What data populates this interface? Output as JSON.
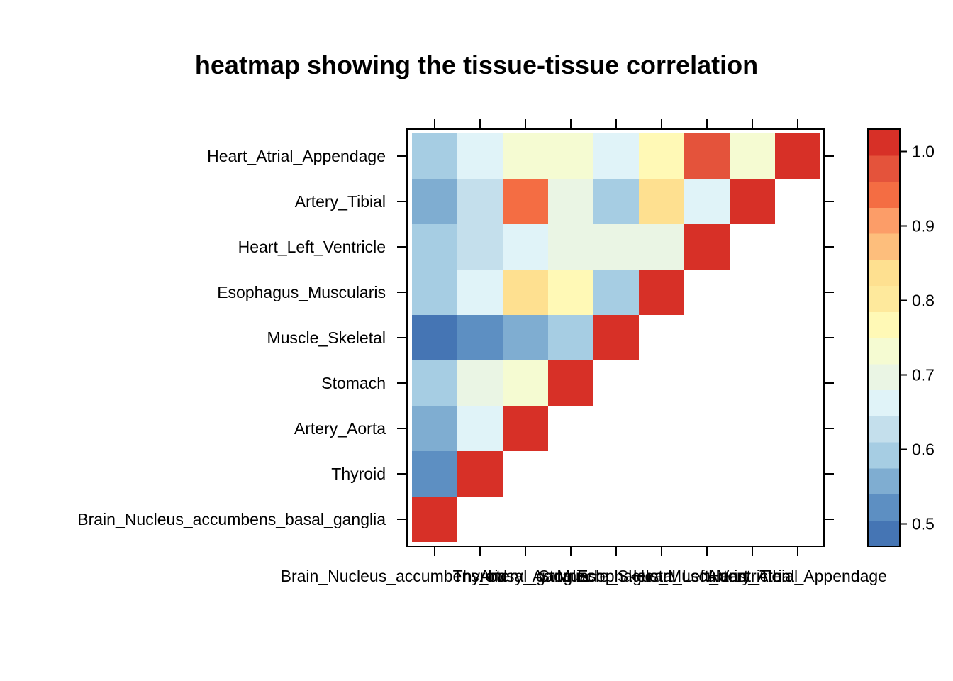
{
  "chart_data": {
    "type": "heatmap",
    "title": "heatmap showing the tissue-tissue correlation",
    "xlabel": "",
    "ylabel": "",
    "tissues": [
      "Brain_Nucleus_accumbens_basal_ganglia",
      "Thyroid",
      "Artery_Aorta",
      "Stomach",
      "Muscle_Skeletal",
      "Esophagus_Muscularis",
      "Heart_Left_Ventricle",
      "Artery_Tibial",
      "Heart_Atrial_Appendage"
    ],
    "matrix": [
      [
        1.0,
        null,
        null,
        null,
        null,
        null,
        null,
        null,
        null
      ],
      [
        0.53,
        1.0,
        null,
        null,
        null,
        null,
        null,
        null,
        null
      ],
      [
        0.56,
        0.66,
        1.0,
        null,
        null,
        null,
        null,
        null,
        null
      ],
      [
        0.59,
        0.69,
        0.74,
        1.0,
        null,
        null,
        null,
        null,
        null
      ],
      [
        0.49,
        0.53,
        0.56,
        0.59,
        1.0,
        null,
        null,
        null,
        null
      ],
      [
        0.59,
        0.66,
        0.84,
        0.78,
        0.59,
        1.0,
        null,
        null,
        null
      ],
      [
        0.59,
        0.62,
        0.66,
        0.69,
        0.69,
        0.69,
        1.0,
        null,
        null
      ],
      [
        0.56,
        0.62,
        0.94,
        0.69,
        0.59,
        0.84,
        0.66,
        1.0,
        null
      ],
      [
        0.59,
        0.66,
        0.74,
        0.74,
        0.66,
        0.78,
        0.97,
        0.74,
        1.0
      ]
    ],
    "colorbar": {
      "range": [
        0.47,
        1.03
      ],
      "ticks": [
        "0.5",
        "0.6",
        "0.7",
        "0.8",
        "0.9",
        "1.0"
      ],
      "tick_values": [
        0.5,
        0.6,
        0.7,
        0.8,
        0.9,
        1.0
      ],
      "colors": [
        "#4575B4",
        "#5D8FC2",
        "#7FADD1",
        "#A6CDE3",
        "#C4DFEC",
        "#E0F3F8",
        "#EAF5E4",
        "#F5FBD2",
        "#FFF9B6",
        "#FEE99C",
        "#FEE090",
        "#FDBE7C",
        "#FC9D68",
        "#F46D43",
        "#E4533B",
        "#D73027"
      ]
    },
    "grid": false,
    "legend": "right colorbar"
  }
}
